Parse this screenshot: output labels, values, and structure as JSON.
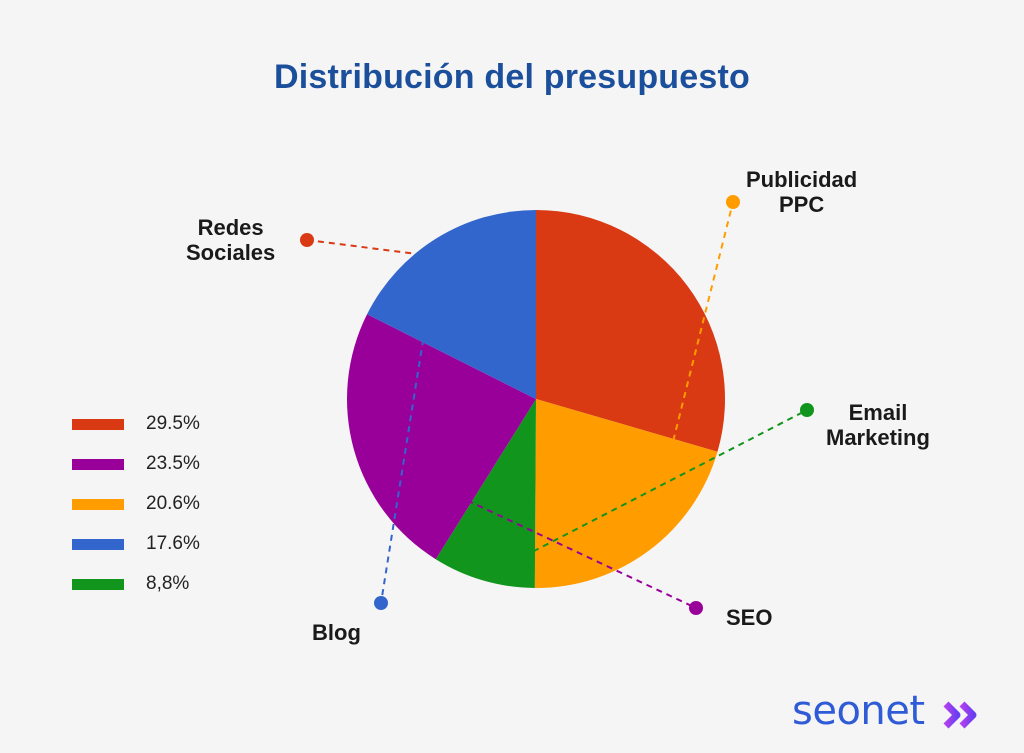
{
  "chart_data": {
    "type": "pie",
    "title": "Distribución del presupuesto",
    "slices": [
      {
        "label": "Redes Sociales",
        "label_lines": [
          "Redes",
          "Sociales"
        ],
        "value": 29.5,
        "value_label": "29.5%",
        "color": "#d93a13"
      },
      {
        "label": "Publicidad PPC",
        "label_lines": [
          "Publicidad",
          "PPC"
        ],
        "value": 20.6,
        "value_label": "20.6%",
        "color": "#ff9c00"
      },
      {
        "label": "Email Marketing",
        "label_lines": [
          "Email",
          "Marketing"
        ],
        "value": 8.8,
        "value_label": "8,8%",
        "color": "#12951c"
      },
      {
        "label": "SEO",
        "label_lines": [
          "SEO"
        ],
        "value": 23.5,
        "value_label": "23.5%",
        "color": "#99009a"
      },
      {
        "label": "Blog",
        "label_lines": [
          "Blog"
        ],
        "value": 17.6,
        "value_label": "17.6%",
        "color": "#3366cc"
      }
    ],
    "legend": [
      {
        "text": "29.5%",
        "color": "#d93a13"
      },
      {
        "text": "23.5%",
        "color": "#99009a"
      },
      {
        "text": "20.6%",
        "color": "#ff9c00"
      },
      {
        "text": "17.6%",
        "color": "#3366cc"
      },
      {
        "text": "8,8%",
        "color": "#12951c"
      }
    ],
    "legend_position": "left"
  },
  "brand": {
    "name": "seonet",
    "accent_color": "#8a3ff0",
    "color": "#2f5bd6",
    "icon": "double-chevron-right-icon"
  }
}
